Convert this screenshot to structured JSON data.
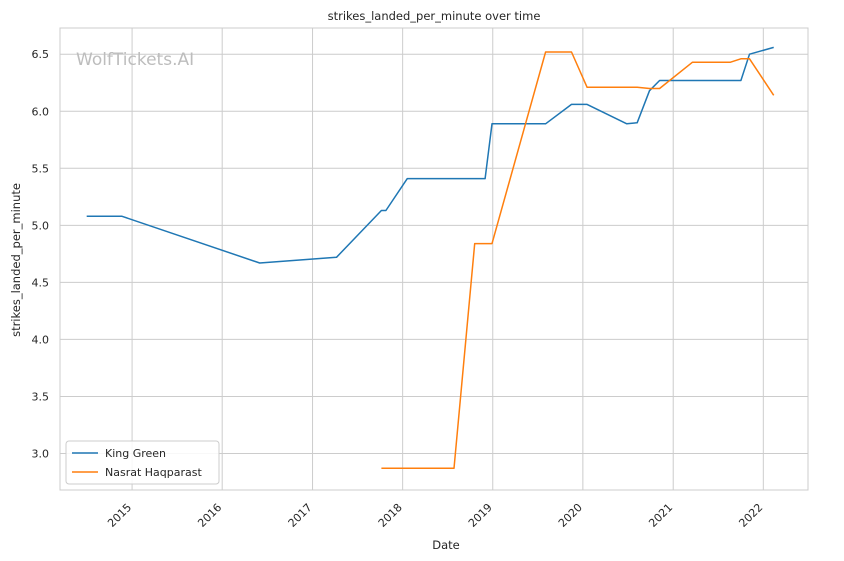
{
  "chart_data": {
    "type": "line",
    "title": "strikes_landed_per_minute over time",
    "xlabel": "Date",
    "ylabel": "strikes_landed_per_minute",
    "watermark": "WolfTickets.AI",
    "xlim": [
      "2014-03-15",
      "2022-07-01"
    ],
    "ylim": [
      2.68,
      6.73
    ],
    "x_ticks": [
      "2015",
      "2016",
      "2017",
      "2018",
      "2019",
      "2020",
      "2021",
      "2022"
    ],
    "y_ticks": [
      "3.0",
      "3.5",
      "4.0",
      "4.5",
      "5.0",
      "5.5",
      "6.0",
      "6.5"
    ],
    "grid": true,
    "legend_position": "lower-left",
    "series": [
      {
        "name": "King Green",
        "color": "#1f77b4",
        "points": [
          [
            "2014-07-01",
            5.08
          ],
          [
            "2014-11-20",
            5.08
          ],
          [
            "2016-06-01",
            4.67
          ],
          [
            "2017-04-08",
            4.72
          ],
          [
            "2017-10-07",
            5.13
          ],
          [
            "2017-10-25",
            5.13
          ],
          [
            "2018-01-20",
            5.41
          ],
          [
            "2018-10-27",
            5.41
          ],
          [
            "2018-12-01",
            5.41
          ],
          [
            "2018-12-29",
            5.89
          ],
          [
            "2019-08-03",
            5.89
          ],
          [
            "2019-11-16",
            6.06
          ],
          [
            "2020-01-18",
            6.06
          ],
          [
            "2020-06-27",
            5.89
          ],
          [
            "2020-08-08",
            5.9
          ],
          [
            "2020-09-27",
            6.18
          ],
          [
            "2020-11-07",
            6.27
          ],
          [
            "2021-10-02",
            6.27
          ],
          [
            "2021-11-06",
            6.5
          ],
          [
            "2022-02-12",
            6.56
          ]
        ]
      },
      {
        "name": "Nasrat Haqparast",
        "color": "#ff7f0e",
        "points": [
          [
            "2017-10-07",
            2.87
          ],
          [
            "2018-07-28",
            2.87
          ],
          [
            "2018-10-20",
            4.84
          ],
          [
            "2018-12-29",
            4.84
          ],
          [
            "2019-08-03",
            6.52
          ],
          [
            "2019-11-16",
            6.52
          ],
          [
            "2020-01-18",
            6.21
          ],
          [
            "2020-08-08",
            6.21
          ],
          [
            "2020-09-27",
            6.2
          ],
          [
            "2020-11-07",
            6.2
          ],
          [
            "2021-03-20",
            6.43
          ],
          [
            "2021-08-21",
            6.43
          ],
          [
            "2021-10-02",
            6.46
          ],
          [
            "2021-11-06",
            6.46
          ],
          [
            "2022-02-12",
            6.14
          ]
        ]
      }
    ]
  }
}
